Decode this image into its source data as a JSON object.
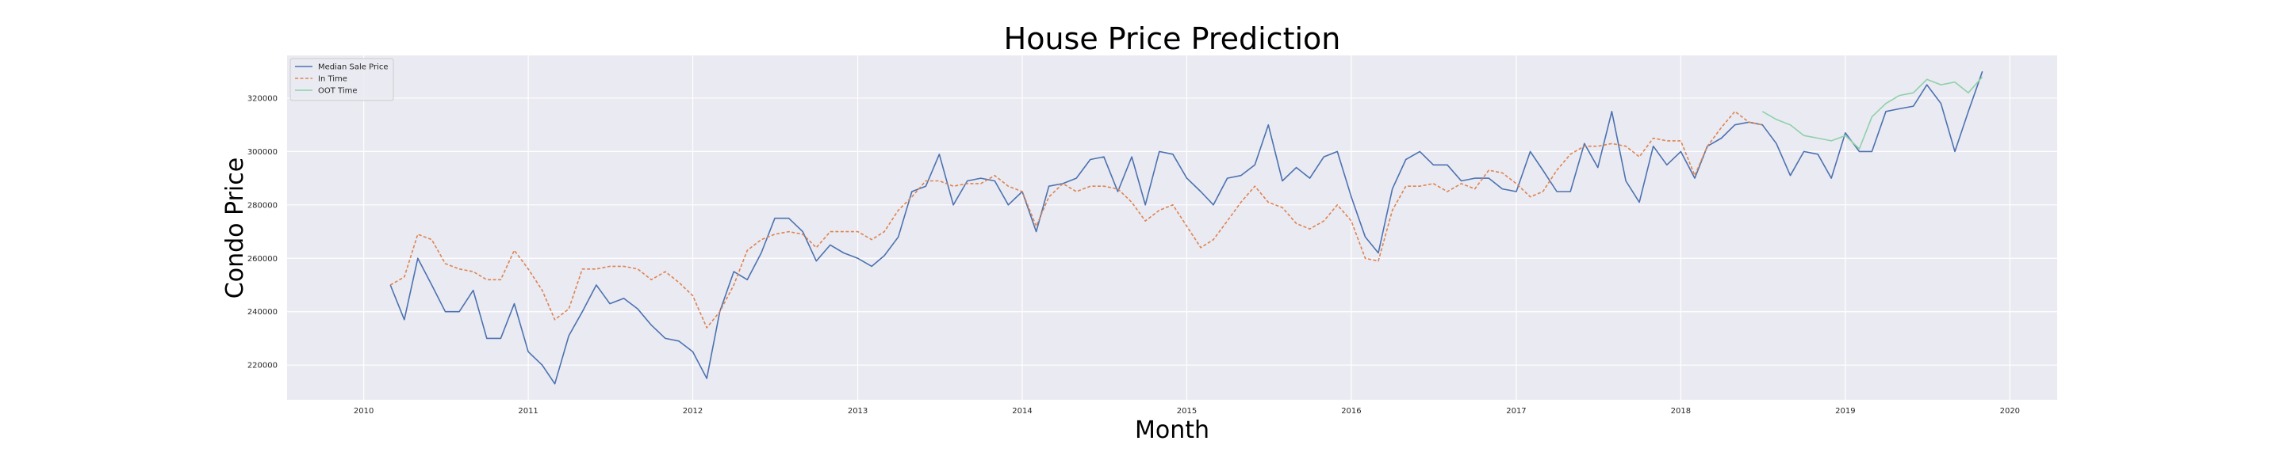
{
  "chart_data": {
    "type": "line",
    "title": "House Price Prediction",
    "xlabel": "Month",
    "ylabel": "Condo Price",
    "xlim": [
      "2009-07-15",
      "2020-04-15"
    ],
    "ylim": [
      207000,
      336000
    ],
    "x_ticks": [
      "2010",
      "2011",
      "2012",
      "2013",
      "2014",
      "2015",
      "2016",
      "2017",
      "2018",
      "2019",
      "2020"
    ],
    "y_ticks": [
      "220000",
      "240000",
      "260000",
      "280000",
      "300000",
      "320000"
    ],
    "grid": true,
    "legend_position": "top-left",
    "series": [
      {
        "name": "Median Sale Price",
        "color": "#4c72b0",
        "style": "solid",
        "x": [
          "2010-03-01",
          "2010-04-01",
          "2010-05-01",
          "2010-06-01",
          "2010-07-01",
          "2010-08-01",
          "2010-09-01",
          "2010-10-01",
          "2010-11-01",
          "2010-12-01",
          "2011-01-01",
          "2011-02-01",
          "2011-03-01",
          "2011-04-01",
          "2011-05-01",
          "2011-06-01",
          "2011-07-01",
          "2011-08-01",
          "2011-09-01",
          "2011-10-01",
          "2011-11-01",
          "2011-12-01",
          "2012-01-01",
          "2012-02-01",
          "2012-03-01",
          "2012-04-01",
          "2012-05-01",
          "2012-06-01",
          "2012-07-01",
          "2012-08-01",
          "2012-09-01",
          "2012-10-01",
          "2012-11-01",
          "2012-12-01",
          "2013-01-01",
          "2013-02-01",
          "2013-03-01",
          "2013-04-01",
          "2013-05-01",
          "2013-06-01",
          "2013-07-01",
          "2013-08-01",
          "2013-09-01",
          "2013-10-01",
          "2013-11-01",
          "2013-12-01",
          "2014-01-01",
          "2014-02-01",
          "2014-03-01",
          "2014-04-01",
          "2014-05-01",
          "2014-06-01",
          "2014-07-01",
          "2014-08-01",
          "2014-09-01",
          "2014-10-01",
          "2014-11-01",
          "2014-12-01",
          "2015-01-01",
          "2015-02-01",
          "2015-03-01",
          "2015-04-01",
          "2015-05-01",
          "2015-06-01",
          "2015-07-01",
          "2015-08-01",
          "2015-09-01",
          "2015-10-01",
          "2015-11-01",
          "2015-12-01",
          "2016-01-01",
          "2016-02-01",
          "2016-03-01",
          "2016-04-01",
          "2016-05-01",
          "2016-06-01",
          "2016-07-01",
          "2016-08-01",
          "2016-09-01",
          "2016-10-01",
          "2016-11-01",
          "2016-12-01",
          "2017-01-01",
          "2017-02-01",
          "2017-03-01",
          "2017-04-01",
          "2017-05-01",
          "2017-06-01",
          "2017-07-01",
          "2017-08-01",
          "2017-09-01",
          "2017-10-01",
          "2017-11-01",
          "2017-12-01",
          "2018-01-01",
          "2018-02-01",
          "2018-03-01",
          "2018-04-01",
          "2018-05-01",
          "2018-06-01",
          "2018-07-01",
          "2018-08-01",
          "2018-09-01",
          "2018-10-01",
          "2018-11-01",
          "2018-12-01",
          "2019-01-01",
          "2019-02-01",
          "2019-03-01",
          "2019-04-01",
          "2019-05-01",
          "2019-06-01",
          "2019-07-01",
          "2019-08-01",
          "2019-09-01",
          "2019-10-01",
          "2019-11-01"
        ],
        "y": [
          250000,
          237000,
          260000,
          250000,
          240000,
          240000,
          248000,
          230000,
          230000,
          243000,
          225000,
          220000,
          213000,
          231000,
          240000,
          250000,
          243000,
          245000,
          241000,
          235000,
          230000,
          229000,
          225000,
          215000,
          240000,
          255000,
          252000,
          262000,
          275000,
          275000,
          270000,
          259000,
          265000,
          262000,
          260000,
          257000,
          261000,
          268000,
          285000,
          287000,
          299000,
          280000,
          289000,
          290000,
          289000,
          280000,
          285000,
          270000,
          287000,
          288000,
          290000,
          297000,
          298000,
          285000,
          298000,
          280000,
          300000,
          299000,
          290000,
          285000,
          280000,
          290000,
          291000,
          295000,
          310000,
          289000,
          294000,
          290000,
          298000,
          300000,
          283000,
          268000,
          262000,
          286000,
          297000,
          300000,
          295000,
          295000,
          289000,
          290000,
          290000,
          286000,
          285000,
          300000,
          293000,
          285000,
          285000,
          303000,
          294000,
          315000,
          289000,
          281000,
          302000,
          295000,
          300000,
          290000,
          302000,
          305000,
          310000,
          311000,
          310000,
          303000,
          291000,
          300000,
          299000,
          290000,
          307000,
          300000,
          300000,
          315000,
          316000,
          317000,
          325000,
          318000,
          300000,
          315000,
          330000
        ]
      },
      {
        "name": "In Time",
        "color": "#dd8452",
        "style": "dashed",
        "x": [
          "2010-03-01",
          "2010-04-01",
          "2010-05-01",
          "2010-06-01",
          "2010-07-01",
          "2010-08-01",
          "2010-09-01",
          "2010-10-01",
          "2010-11-01",
          "2010-12-01",
          "2011-01-01",
          "2011-02-01",
          "2011-03-01",
          "2011-04-01",
          "2011-05-01",
          "2011-06-01",
          "2011-07-01",
          "2011-08-01",
          "2011-09-01",
          "2011-10-01",
          "2011-11-01",
          "2011-12-01",
          "2012-01-01",
          "2012-02-01",
          "2012-03-01",
          "2012-04-01",
          "2012-05-01",
          "2012-06-01",
          "2012-07-01",
          "2012-08-01",
          "2012-09-01",
          "2012-10-01",
          "2012-11-01",
          "2012-12-01",
          "2013-01-01",
          "2013-02-01",
          "2013-03-01",
          "2013-04-01",
          "2013-05-01",
          "2013-06-01",
          "2013-07-01",
          "2013-08-01",
          "2013-09-01",
          "2013-10-01",
          "2013-11-01",
          "2013-12-01",
          "2014-01-01",
          "2014-02-01",
          "2014-03-01",
          "2014-04-01",
          "2014-05-01",
          "2014-06-01",
          "2014-07-01",
          "2014-08-01",
          "2014-09-01",
          "2014-10-01",
          "2014-11-01",
          "2014-12-01",
          "2015-01-01",
          "2015-02-01",
          "2015-03-01",
          "2015-04-01",
          "2015-05-01",
          "2015-06-01",
          "2015-07-01",
          "2015-08-01",
          "2015-09-01",
          "2015-10-01",
          "2015-11-01",
          "2015-12-01",
          "2016-01-01",
          "2016-02-01",
          "2016-03-01",
          "2016-04-01",
          "2016-05-01",
          "2016-06-01",
          "2016-07-01",
          "2016-08-01",
          "2016-09-01",
          "2016-10-01",
          "2016-11-01",
          "2016-12-01",
          "2017-01-01",
          "2017-02-01",
          "2017-03-01",
          "2017-04-01",
          "2017-05-01",
          "2017-06-01",
          "2017-07-01",
          "2017-08-01",
          "2017-09-01",
          "2017-10-01",
          "2017-11-01",
          "2017-12-01",
          "2018-01-01",
          "2018-02-01",
          "2018-03-01",
          "2018-04-01",
          "2018-05-01",
          "2018-06-01",
          "2018-07-01"
        ],
        "y": [
          250000,
          253000,
          269000,
          267000,
          258000,
          256000,
          255000,
          252000,
          252000,
          263000,
          256000,
          248000,
          237000,
          241000,
          256000,
          256000,
          257000,
          257000,
          256000,
          252000,
          255000,
          251000,
          246000,
          234000,
          240000,
          250000,
          263000,
          267000,
          269000,
          270000,
          269000,
          264000,
          270000,
          270000,
          270000,
          267000,
          270000,
          278000,
          283000,
          289000,
          289000,
          287000,
          288000,
          288000,
          291000,
          287000,
          285000,
          272000,
          283000,
          288000,
          285000,
          287000,
          287000,
          286000,
          281000,
          274000,
          278000,
          280000,
          272000,
          264000,
          267000,
          274000,
          281000,
          287000,
          281000,
          279000,
          273000,
          271000,
          274000,
          280000,
          274000,
          260000,
          259000,
          278000,
          287000,
          287000,
          288000,
          285000,
          288000,
          286000,
          293000,
          292000,
          288000,
          283000,
          285000,
          293000,
          299000,
          302000,
          302000,
          303000,
          302000,
          298000,
          305000,
          304000,
          304000,
          291000,
          302000,
          309000,
          315000,
          311000,
          310000
        ]
      },
      {
        "name": "OOT Time",
        "color": "#8ed1a8",
        "style": "solid",
        "x": [
          "2018-07-01",
          "2018-08-01",
          "2018-09-01",
          "2018-10-01",
          "2018-11-01",
          "2018-12-01",
          "2019-01-01",
          "2019-02-01",
          "2019-03-01",
          "2019-04-01",
          "2019-05-01",
          "2019-06-01",
          "2019-07-01",
          "2019-08-01",
          "2019-09-01",
          "2019-10-01",
          "2019-11-01"
        ],
        "y": [
          315000,
          312000,
          310000,
          306000,
          305000,
          304000,
          306000,
          301000,
          313000,
          318000,
          321000,
          322000,
          327000,
          325000,
          326000,
          322000,
          328000
        ]
      }
    ]
  }
}
